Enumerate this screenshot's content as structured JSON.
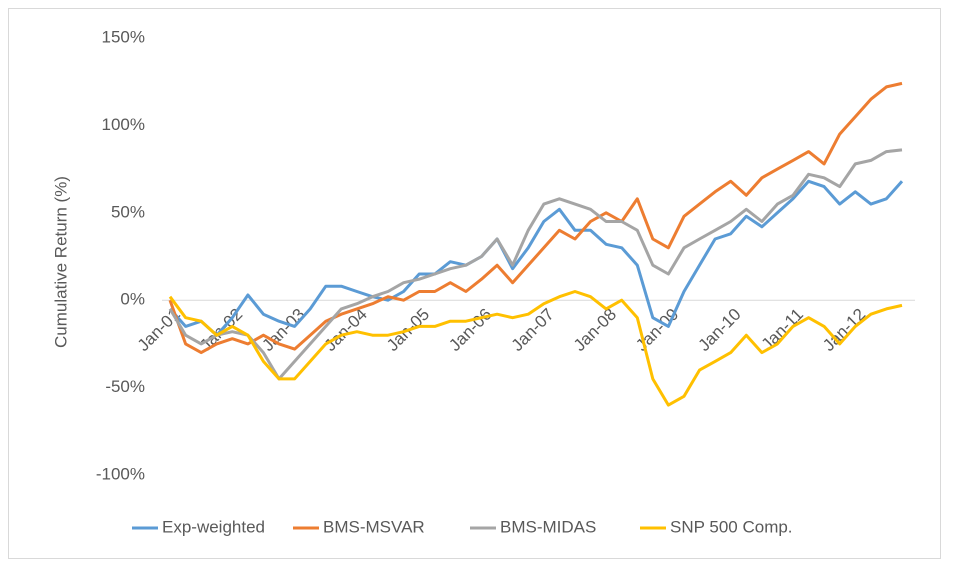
{
  "chart_data": {
    "type": "line",
    "y_label": "Cumulative Return (%)",
    "categories": [
      "Jan-01",
      null,
      null,
      null,
      "Jan-02",
      null,
      null,
      null,
      "Jan-03",
      null,
      null,
      null,
      "Jan-04",
      null,
      null,
      null,
      "Jan-05",
      null,
      null,
      null,
      "Jan-06",
      null,
      null,
      null,
      "Jan-07",
      null,
      null,
      null,
      "Jan-08",
      null,
      null,
      null,
      "Jan-09",
      null,
      null,
      null,
      "Jan-10",
      null,
      null,
      null,
      "Jan-11",
      null,
      null,
      null,
      "Jan-12",
      null,
      null,
      null
    ],
    "series": [
      {
        "name": "Exp-weighted",
        "color": "#5b9bd5",
        "values": [
          -5,
          -15,
          -12,
          -20,
          -10,
          3,
          -8,
          -12,
          -15,
          -5,
          8,
          8,
          5,
          2,
          0,
          5,
          15,
          15,
          22,
          20,
          25,
          35,
          18,
          30,
          45,
          52,
          40,
          40,
          32,
          30,
          20,
          -10,
          -15,
          5,
          20,
          35,
          38,
          48,
          42,
          50,
          58,
          68,
          65,
          55,
          62,
          55,
          58,
          68
        ]
      },
      {
        "name": "BMS-MSVAR",
        "color": "#ed7d31",
        "values": [
          0,
          -25,
          -30,
          -25,
          -22,
          -25,
          -20,
          -25,
          -28,
          -20,
          -12,
          -8,
          -5,
          -2,
          2,
          0,
          5,
          5,
          10,
          5,
          12,
          20,
          10,
          20,
          30,
          40,
          35,
          45,
          50,
          45,
          58,
          35,
          30,
          48,
          55,
          62,
          68,
          60,
          70,
          75,
          80,
          85,
          78,
          95,
          105,
          115,
          122,
          124
        ]
      },
      {
        "name": "BMS-MIDAS",
        "color": "#a5a5a5",
        "values": [
          -5,
          -20,
          -25,
          -20,
          -18,
          -20,
          -30,
          -45,
          -35,
          -25,
          -15,
          -5,
          -2,
          2,
          5,
          10,
          12,
          15,
          18,
          20,
          25,
          35,
          20,
          40,
          55,
          58,
          55,
          52,
          45,
          45,
          40,
          20,
          15,
          30,
          35,
          40,
          45,
          52,
          45,
          55,
          60,
          72,
          70,
          65,
          78,
          80,
          85,
          86
        ]
      },
      {
        "name": "SNP 500 Comp.",
        "color": "#ffc000",
        "values": [
          2,
          -10,
          -12,
          -20,
          -15,
          -20,
          -35,
          -45,
          -45,
          -35,
          -25,
          -20,
          -18,
          -20,
          -20,
          -18,
          -15,
          -15,
          -12,
          -12,
          -10,
          -8,
          -10,
          -8,
          -2,
          2,
          5,
          2,
          -5,
          0,
          -10,
          -45,
          -60,
          -55,
          -40,
          -35,
          -30,
          -20,
          -30,
          -25,
          -15,
          -10,
          -15,
          -25,
          -15,
          -8,
          -5,
          -3
        ]
      }
    ],
    "ylim": [
      -100,
      150
    ],
    "yticks": [
      {
        "value": -100,
        "label": "-100%"
      },
      {
        "value": -50,
        "label": "-50%"
      },
      {
        "value": 0,
        "label": "0%"
      },
      {
        "value": 50,
        "label": "50%"
      },
      {
        "value": 100,
        "label": "100%"
      },
      {
        "value": 150,
        "label": "150%"
      }
    ],
    "grid": false,
    "legend": "bottom"
  }
}
